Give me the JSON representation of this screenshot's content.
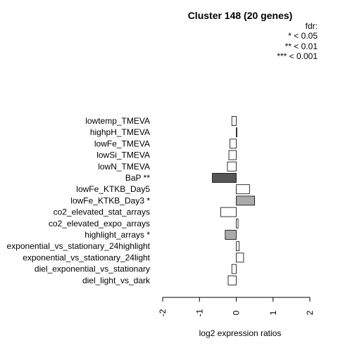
{
  "chart_data": {
    "type": "bar",
    "orientation": "horizontal",
    "title": "Cluster 148 (20 genes)",
    "xlabel": "log2 expression ratios",
    "ylabel": "",
    "xlim": [
      -2,
      2
    ],
    "xticks": [
      "-2",
      "-1",
      "0",
      "1",
      "2"
    ],
    "legend": {
      "title": "fdr:",
      "entries": [
        "* < 0.05",
        "** < 0.01",
        "*** < 0.001"
      ],
      "placement": "top-right"
    },
    "categories": [
      "lowtemp_TMEVA",
      "highpH_TMEVA",
      "lowFe_TMEVA",
      "lowSi_TMEVA",
      "lowN_TMEVA",
      "BaP **",
      "lowFe_KTKB_Day5",
      "lowFe_KTKB_Day3 *",
      "co2_elevated_stat_arrays",
      "co2_elevated_expo_arrays",
      "highlight_arrays *",
      "exponential_vs_stationary_24highlight",
      "exponential_vs_stationary_24light",
      "diel_exponential_vs_stationary",
      "diel_light_vs_dark"
    ],
    "values": [
      -0.12,
      0.02,
      -0.17,
      -0.2,
      -0.24,
      -0.65,
      0.36,
      0.5,
      -0.42,
      0.05,
      -0.3,
      0.08,
      0.2,
      -0.12,
      -0.22
    ],
    "bar_colors": [
      "#ffffff",
      "#ffffff",
      "#ffffff",
      "#ffffff",
      "#ffffff",
      "#555555",
      "#ffffff",
      "#aaaaaa",
      "#ffffff",
      "#ffffff",
      "#aaaaaa",
      "#ffffff",
      "#ffffff",
      "#ffffff",
      "#ffffff"
    ]
  }
}
